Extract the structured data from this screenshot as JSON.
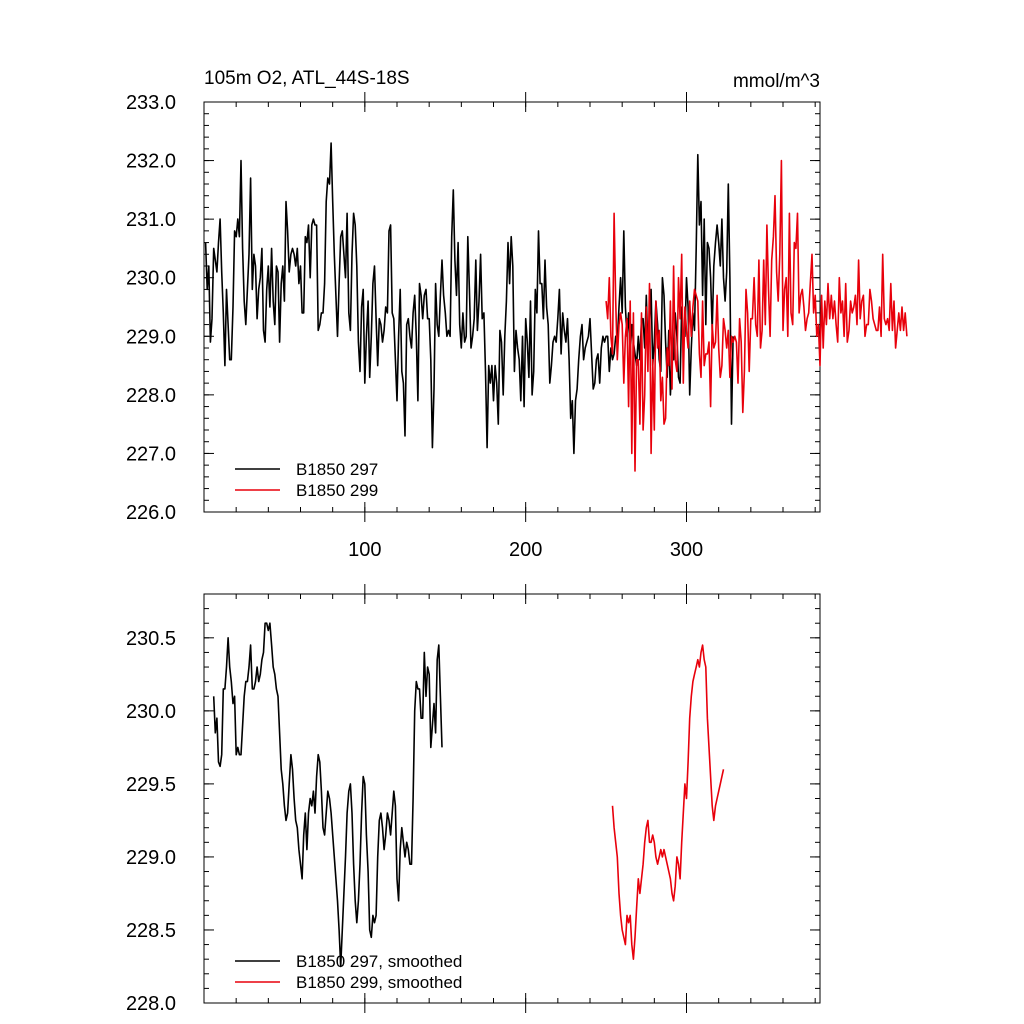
{
  "chart_data": [
    {
      "type": "line",
      "title": "105m O2, ATL_44S-18S",
      "units": "mmol/m^3",
      "xlim": [
        0,
        383
      ],
      "ylim": [
        226.0,
        233.0
      ],
      "x_ticks": [
        "100",
        "200",
        "300"
      ],
      "y_ticks": [
        "226.0",
        "227.0",
        "228.0",
        "229.0",
        "230.0",
        "231.0",
        "232.0",
        "233.0"
      ],
      "legend_position": "bottom-left",
      "series": [
        {
          "name": "B1850 297",
          "color": "#000000",
          "x_start": 1,
          "values": [
            230.6,
            229.8,
            230.2,
            228.9,
            229.3,
            230.5,
            230.3,
            230.1,
            230.6,
            231.0,
            230.1,
            229.4,
            228.5,
            229.8,
            229.2,
            228.6,
            228.6,
            229.5,
            230.8,
            230.7,
            231.0,
            230.7,
            232.0,
            230.5,
            229.6,
            229.2,
            229.8,
            230.4,
            231.7,
            229.8,
            230.4,
            230.2,
            229.3,
            229.8,
            230.0,
            230.5,
            229.1,
            228.9,
            229.8,
            230.2,
            229.5,
            230.5,
            229.6,
            229.2,
            230.2,
            230.1,
            228.9,
            229.9,
            230.2,
            229.6,
            231.3,
            230.8,
            230.1,
            230.4,
            230.5,
            230.4,
            230.2,
            230.5,
            229.9,
            230.2,
            229.4,
            229.4,
            230.7,
            230.6,
            230.9,
            230.0,
            230.9,
            231.0,
            230.9,
            230.9,
            229.1,
            229.2,
            229.4,
            229.4,
            229.9,
            231.3,
            231.7,
            231.6,
            232.3,
            231.3,
            230.4,
            229.7,
            229.0,
            229.9,
            230.7,
            230.8,
            230.4,
            230.0,
            231.1,
            229.4,
            229.1,
            230.4,
            231.1,
            230.9,
            230.2,
            228.9,
            228.4,
            229.5,
            229.8,
            228.2,
            229.0,
            229.6,
            228.3,
            229.0,
            229.9,
            230.2,
            229.3,
            228.5,
            229.3,
            229.2,
            228.9,
            229.1,
            229.5,
            229.4,
            230.8,
            230.9,
            229.4,
            229.3,
            228.6,
            227.9,
            229.0,
            229.8,
            228.4,
            228.2,
            227.3,
            229.2,
            229.3,
            229.0,
            228.8,
            229.4,
            229.7,
            229.0,
            227.9,
            229.9,
            229.7,
            229.3,
            229.7,
            229.8,
            229.3,
            229.3,
            228.6,
            227.1,
            228.1,
            229.9,
            229.2,
            229.0,
            229.7,
            230.3,
            229.7,
            229.4,
            229.0,
            229.1,
            229.0,
            230.7,
            231.5,
            230.3,
            229.7,
            230.6,
            229.2,
            228.8,
            229.4,
            228.9,
            229.0,
            230.7,
            229.8,
            228.8,
            229.0,
            229.3,
            230.3,
            229.1,
            229.6,
            230.4,
            229.3,
            229.4,
            228.4,
            227.1,
            228.5,
            228.2,
            228.5,
            227.9,
            228.5,
            228.2,
            227.5,
            229.1,
            228.9,
            228.0,
            229.0,
            229.6,
            230.6,
            229.9,
            230.7,
            230.2,
            228.4,
            229.1,
            228.8,
            228.6,
            227.9,
            229.0,
            227.8,
            229.3,
            228.9,
            228.3,
            229.6,
            228.0,
            228.4,
            229.8,
            229.4,
            230.8,
            229.9,
            229.9,
            229.3,
            230.3,
            229.5,
            229.2,
            228.2,
            228.5,
            228.9,
            229.0,
            228.9,
            229.3,
            229.8,
            228.7,
            229.4,
            229.1,
            228.9,
            229.3,
            228.6,
            227.6,
            227.9,
            227.0,
            227.9,
            228.1,
            228.6,
            229.0,
            229.2,
            228.6,
            228.8,
            228.9,
            229.0,
            229.3,
            228.7,
            228.1,
            228.2,
            228.6,
            228.7,
            228.2,
            228.8,
            229.0,
            228.9,
            229.0,
            229.0,
            228.4,
            228.8,
            228.6,
            228.7,
            229.0,
            228.9,
            229.5,
            230.0,
            229.4,
            230.8,
            229.5,
            229.0,
            229.4,
            228.7,
            229.2,
            228.9,
            228.7,
            228.5,
            229.0,
            228.6,
            229.3,
            229.3,
            228.8,
            229.7,
            228.8,
            229.2,
            229.8,
            228.5,
            228.9,
            229.6,
            229.2,
            228.6,
            228.4,
            230.0,
            229.7,
            228.9,
            228.3,
            229.1,
            228.0,
            228.6,
            228.6,
            229.4,
            229.0,
            228.3,
            228.2,
            229.5,
            229.0,
            229.0,
            230.0,
            229.5,
            228.0,
            228.8,
            229.4,
            229.1,
            230.5,
            232.1,
            230.9,
            231.3,
            229.7,
            231.0,
            229.2,
            230.6,
            230.5,
            230.0,
            229.1,
            230.2,
            230.6,
            230.9,
            230.6,
            230.2,
            231.0,
            230.0,
            229.6,
            230.1,
            231.6,
            230.0,
            227.5,
            229.0
          ],
          "values_note_start": ""
        },
        {
          "name": "B1850 299",
          "color": "#e8000b",
          "x_start": 250,
          "values": [
            229.6,
            229.3,
            230.0,
            229.0,
            228.7,
            231.1,
            229.6,
            228.6,
            229.2,
            229.4,
            229.2,
            228.2,
            229.0,
            229.3,
            227.8,
            229.6,
            227.0,
            229.4,
            226.7,
            228.6,
            228.6,
            227.5,
            229.4,
            227.4,
            228.0,
            229.5,
            228.4,
            229.9,
            227.0,
            228.6,
            227.4,
            229.6,
            228.8,
            229.1,
            227.9,
            228.3,
            227.5,
            227.6,
            228.8,
            228.5,
            229.6,
            228.1,
            230.2,
            228.6,
            228.4,
            230.0,
            229.3,
            230.4,
            228.2,
            229.5,
            229.1,
            228.8,
            229.6,
            229.0,
            229.5,
            229.8,
            229.7,
            229.6,
            228.7,
            228.3,
            229.6,
            228.5,
            228.7,
            228.7,
            228.9,
            227.8,
            229.2,
            228.8,
            228.9,
            229.7,
            228.8,
            228.3,
            228.5,
            229.3,
            229.1,
            228.8,
            229.1,
            228.3,
            229.0,
            228.9,
            229.0,
            228.9,
            228.2,
            229.3,
            228.9,
            227.7,
            228.4,
            229.8,
            229.4,
            228.4,
            229.3,
            229.3,
            230.0,
            229.2,
            229.0,
            230.3,
            228.8,
            229.1,
            230.3,
            229.2,
            230.9,
            229.8,
            229.0,
            230.3,
            230.7,
            231.4,
            230.1,
            229.6,
            230.4,
            232.0,
            229.1,
            229.8,
            230.0,
            229.0,
            231.1,
            229.4,
            229.2,
            230.6,
            230.5,
            231.1,
            229.4,
            229.7,
            229.8,
            229.5,
            229.1,
            229.3,
            229.4,
            229.9,
            230.4,
            229.4,
            229.7,
            229.0,
            229.2,
            228.5,
            229.7,
            228.8,
            229.6,
            229.2,
            229.9,
            229.3,
            229.7,
            229.3,
            229.6,
            229.2,
            228.9,
            230.0,
            229.4,
            229.6,
            229.0,
            229.9,
            228.9,
            229.1,
            229.6,
            229.4,
            229.5,
            229.7,
            229.2,
            230.3,
            229.3,
            229.6,
            229.7,
            229.0,
            229.2,
            229.2,
            229.8,
            229.6,
            229.3,
            229.2,
            229.1,
            229.1,
            229.5,
            229.0,
            230.4,
            229.3,
            229.2,
            229.3,
            229.1,
            229.9,
            229.1,
            229.6,
            228.8,
            229.1,
            229.4,
            229.1,
            229.5,
            229.1,
            229.4,
            229.0
          ],
          "values_note_start": ""
        }
      ]
    },
    {
      "type": "line",
      "xlim": [
        0,
        383
      ],
      "ylim": [
        228.0,
        230.8
      ],
      "y_ticks": [
        "228.0",
        "228.5",
        "229.0",
        "229.5",
        "230.0",
        "230.5"
      ],
      "legend_position": "bottom-left",
      "series": [
        {
          "name": "B1850 297, smoothed",
          "color": "#000000",
          "x_start": 6,
          "values": [
            230.1,
            229.85,
            229.95,
            229.65,
            229.62,
            229.7,
            230.15,
            230.15,
            230.3,
            230.5,
            230.3,
            230.2,
            230.05,
            230.1,
            229.7,
            229.75,
            229.7,
            229.7,
            229.9,
            230.1,
            230.2,
            230.2,
            230.3,
            230.45,
            230.15,
            230.15,
            230.2,
            230.3,
            230.2,
            230.25,
            230.35,
            230.4,
            230.6,
            230.6,
            230.55,
            230.6,
            230.45,
            230.3,
            230.25,
            230.15,
            230.1,
            229.85,
            229.6,
            229.5,
            229.35,
            229.25,
            229.3,
            229.5,
            229.7,
            229.6,
            229.4,
            229.25,
            229.2,
            229.05,
            228.95,
            228.85,
            229.15,
            229.3,
            229.05,
            229.3,
            229.4,
            229.35,
            229.45,
            229.3,
            229.55,
            229.7,
            229.65,
            229.45,
            229.2,
            229.15,
            229.3,
            229.45,
            229.4,
            229.3,
            229.15,
            229.0,
            228.85,
            228.7,
            228.5,
            228.25,
            228.5,
            228.75,
            229.0,
            229.3,
            229.45,
            229.5,
            229.3,
            228.95,
            228.7,
            228.55,
            228.7,
            228.95,
            229.3,
            229.55,
            229.5,
            229.15,
            228.9,
            228.5,
            228.45,
            228.6,
            228.55,
            228.6,
            229.0,
            229.25,
            229.3,
            229.2,
            229.05,
            229.15,
            229.3,
            229.25,
            229.15,
            229.3,
            229.45,
            229.35,
            228.85,
            228.7,
            229.05,
            229.2,
            229.1,
            229.0,
            229.1,
            229.05,
            228.95,
            228.95,
            229.4,
            230.0,
            230.2,
            230.15,
            230.15,
            229.95,
            229.95,
            230.4,
            230.1,
            230.3,
            230.25,
            229.75,
            229.9,
            230.05,
            229.85,
            230.35,
            230.45,
            230.1,
            229.75
          ],
          "values_note_start": ""
        },
        {
          "name": "B1850 299, smoothed",
          "color": "#e8000b",
          "x_start": 254,
          "values": [
            229.35,
            229.2,
            229.1,
            229.0,
            228.75,
            228.6,
            228.5,
            228.45,
            228.4,
            228.6,
            228.55,
            228.6,
            228.4,
            228.3,
            228.45,
            228.65,
            228.85,
            228.75,
            228.85,
            228.95,
            229.1,
            229.2,
            229.25,
            229.1,
            229.1,
            229.15,
            229.1,
            229.0,
            228.95,
            229.0,
            229.05,
            229.0,
            229.05,
            229.0,
            228.95,
            228.9,
            228.85,
            228.75,
            228.7,
            228.8,
            229.0,
            228.95,
            228.85,
            229.1,
            229.3,
            229.5,
            229.4,
            229.65,
            229.95,
            230.1,
            230.2,
            230.25,
            230.3,
            230.35,
            230.3,
            230.4,
            230.45,
            230.35,
            230.3,
            229.95,
            229.75,
            229.55,
            229.35,
            229.25,
            229.35,
            229.4,
            229.45,
            229.5,
            229.55,
            229.6
          ],
          "values_note_start": ""
        }
      ]
    }
  ]
}
